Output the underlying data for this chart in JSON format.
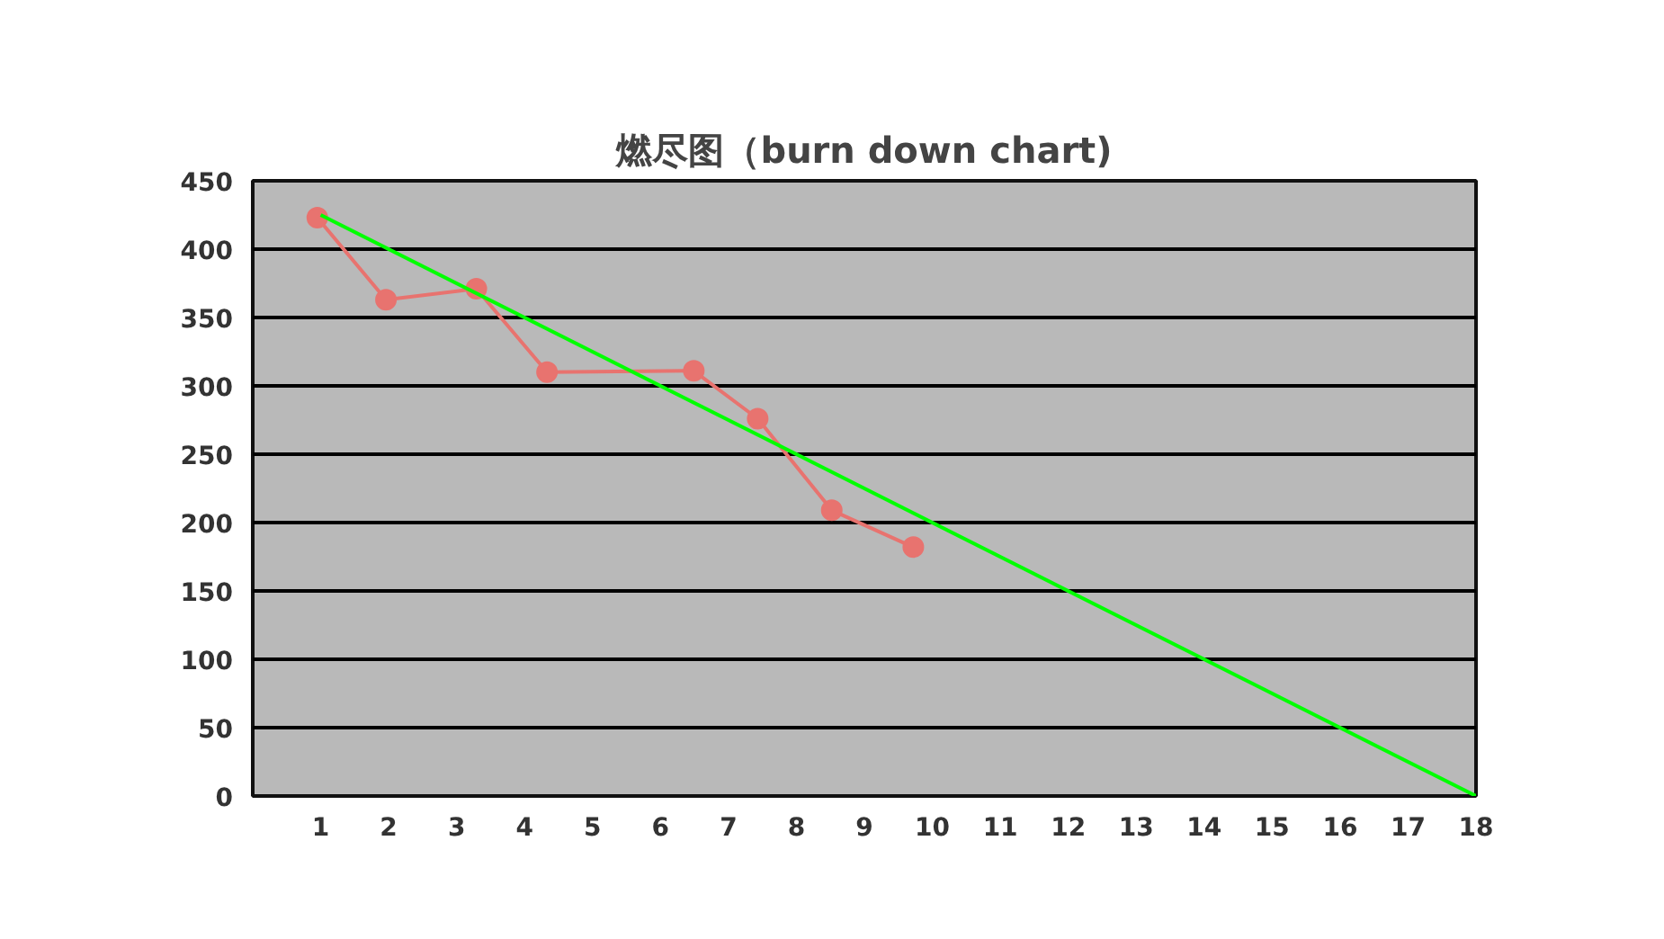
{
  "chart_data": {
    "type": "line",
    "title": "燃尽图（burn down chart)",
    "xlim": [
      0,
      18
    ],
    "xticks": [
      1,
      2,
      3,
      4,
      5,
      6,
      7,
      8,
      9,
      10,
      11,
      12,
      13,
      14,
      15,
      16,
      17,
      18
    ],
    "ylim": [
      0,
      450
    ],
    "yticks": [
      0,
      50,
      100,
      150,
      200,
      250,
      300,
      350,
      400,
      450
    ],
    "grid": "y",
    "series": [
      {
        "color": "#e8736f",
        "marker": "circle",
        "x": [
          0.95,
          1.96,
          3.29,
          4.33,
          6.49,
          7.43,
          8.52,
          9.72
        ],
        "values": [
          423,
          363,
          371,
          310,
          311,
          276,
          209,
          182
        ]
      },
      {
        "color": "#00ff00",
        "marker": "none",
        "x": [
          1,
          18
        ],
        "values": [
          425,
          0
        ]
      }
    ]
  }
}
